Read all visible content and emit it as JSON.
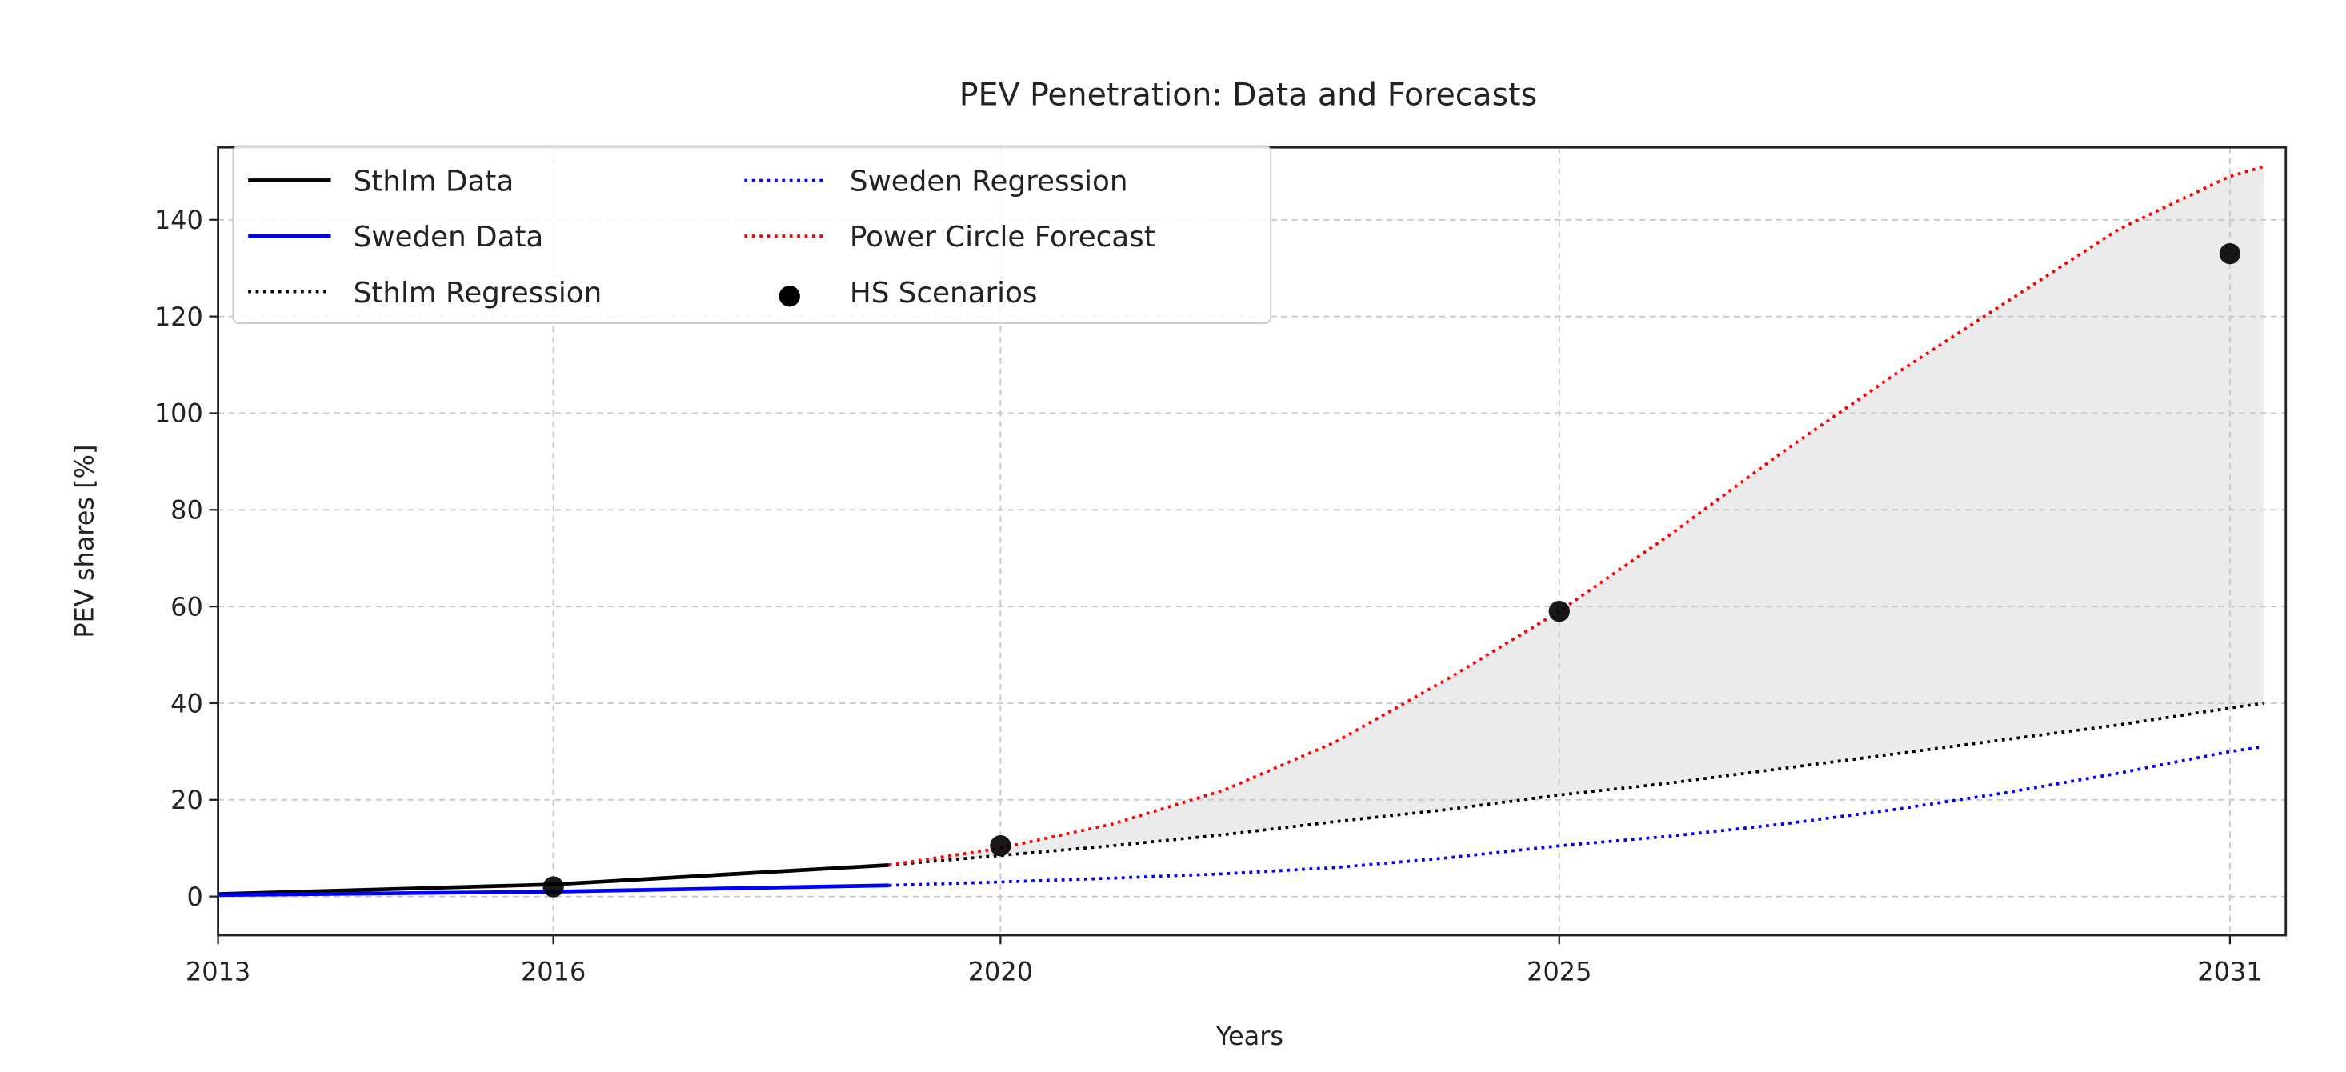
{
  "chart_data": {
    "type": "line",
    "title": "PEV Penetration: Data and Forecasts",
    "xlabel": "Years",
    "ylabel": "PEV shares [%]",
    "xlim": [
      2013,
      2031.5
    ],
    "ylim": [
      -8,
      155
    ],
    "xticks": [
      2013,
      2016,
      2020,
      2025,
      2031
    ],
    "yticks": [
      0,
      20,
      40,
      60,
      80,
      100,
      120,
      140
    ],
    "grid": true,
    "legend_placement": "top-left",
    "series": [
      {
        "name": "Sthlm Data",
        "style": "solid",
        "color": "#000000",
        "x": [
          2013,
          2016,
          2019
        ],
        "y": [
          0.5,
          2.5,
          6.5
        ]
      },
      {
        "name": "Sweden Data",
        "style": "solid",
        "color": "#0000ff",
        "x": [
          2013,
          2016,
          2019
        ],
        "y": [
          0.3,
          1.0,
          2.3
        ]
      },
      {
        "name": "Sthlm Regression",
        "style": "dotted",
        "color": "#000000",
        "x": [
          2019,
          2020,
          2021,
          2022,
          2023,
          2024,
          2025,
          2026,
          2027,
          2028,
          2029,
          2030,
          2031,
          2031.3
        ],
        "y": [
          6.5,
          8.5,
          10.5,
          12.8,
          15.5,
          18,
          21,
          23.5,
          26.5,
          29.5,
          32.5,
          35.5,
          39,
          40
        ]
      },
      {
        "name": "Sweden Regression",
        "style": "dotted",
        "color": "#0000ff",
        "x": [
          2019,
          2020,
          2021,
          2022,
          2023,
          2024,
          2025,
          2026,
          2027,
          2028,
          2029,
          2030,
          2031,
          2031.3
        ],
        "y": [
          2.3,
          3,
          3.8,
          4.7,
          6,
          8,
          10.5,
          12.5,
          15,
          18,
          21.5,
          25.5,
          30,
          31
        ]
      },
      {
        "name": "Power Circle Forecast",
        "style": "dotted",
        "color": "#ff0000",
        "x": [
          2019,
          2020,
          2021,
          2022,
          2023,
          2024,
          2025,
          2026,
          2027,
          2028,
          2029,
          2030,
          2031,
          2031.3
        ],
        "y": [
          6.5,
          10,
          15,
          22,
          32,
          45,
          59,
          75,
          92,
          108,
          123,
          138,
          149,
          151
        ]
      },
      {
        "name": "HS Scenarios",
        "style": "markers",
        "color": "#000000",
        "x": [
          2016,
          2020,
          2025,
          2031
        ],
        "y": [
          2,
          10.5,
          59,
          133
        ]
      }
    ],
    "fill_between": {
      "lower": "Sthlm Regression",
      "upper": "Power Circle Forecast",
      "color": "#ebebeb"
    }
  }
}
